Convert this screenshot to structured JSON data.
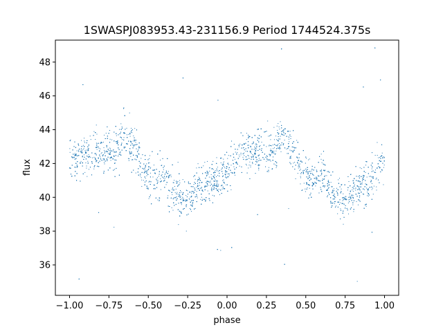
{
  "chart_data": {
    "type": "scatter",
    "title": "1SWASPJ083953.43-231156.9 Period 1744524.375s",
    "xlabel": "phase",
    "ylabel": "flux",
    "xlim": [
      -1.09,
      1.09
    ],
    "ylim": [
      34.2,
      49.3
    ],
    "xticks": [
      -1.0,
      -0.75,
      -0.5,
      -0.25,
      0.0,
      0.25,
      0.5,
      0.75,
      1.0
    ],
    "xtick_labels": [
      "−1.00",
      "−0.75",
      "−0.50",
      "−0.25",
      "0.00",
      "0.25",
      "0.50",
      "0.75",
      "1.00"
    ],
    "yticks": [
      36,
      38,
      40,
      42,
      44,
      46,
      48
    ],
    "ytick_labels": [
      "36",
      "38",
      "40",
      "42",
      "44",
      "46",
      "48"
    ],
    "grid": false,
    "marker_color": "#1f77b4",
    "series": [
      {
        "x": [
          -1.0,
          -0.9,
          -0.8,
          -0.7,
          -0.65,
          -0.6,
          -0.5,
          -0.4,
          -0.3,
          -0.25,
          -0.2,
          -0.1,
          0.0,
          0.1,
          0.2,
          0.3,
          0.35,
          0.4,
          0.5,
          0.6,
          0.7,
          0.75,
          0.8,
          0.9,
          1.0
        ],
        "y": [
          42.0,
          42.6,
          42.8,
          42.7,
          43.6,
          43.0,
          41.3,
          41.2,
          40.0,
          39.6,
          40.5,
          41.0,
          41.5,
          42.6,
          42.8,
          42.7,
          43.6,
          43.0,
          41.3,
          41.2,
          40.0,
          39.6,
          40.5,
          41.0,
          42.0
        ]
      }
    ]
  }
}
